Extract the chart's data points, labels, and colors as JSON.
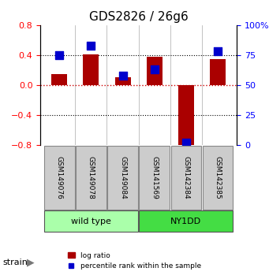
{
  "title": "GDS2826 / 26g6",
  "samples": [
    "GSM149076",
    "GSM149078",
    "GSM149084",
    "GSM141569",
    "GSM142384",
    "GSM142385"
  ],
  "log_ratio": [
    0.15,
    0.41,
    0.1,
    0.38,
    -0.82,
    0.35
  ],
  "percentile_rank": [
    75,
    83,
    58,
    63,
    2,
    78
  ],
  "groups": [
    {
      "label": "wild type",
      "indices": [
        0,
        1,
        2
      ],
      "color": "#aaffaa"
    },
    {
      "label": "NY1DD",
      "indices": [
        3,
        4,
        5
      ],
      "color": "#44dd44"
    }
  ],
  "ylim_left": [
    -0.8,
    0.8
  ],
  "ylim_right": [
    0,
    100
  ],
  "yticks_left": [
    -0.8,
    -0.4,
    0.0,
    0.4,
    0.8
  ],
  "yticks_right": [
    0,
    25,
    50,
    75,
    100
  ],
  "ytick_labels_right": [
    "0",
    "25",
    "50",
    "75",
    "100%"
  ],
  "bar_color": "#aa0000",
  "dot_color": "#0000cc",
  "ref_line_color": "#cc0000",
  "dotted_line_color": "#000000",
  "bar_width": 0.5,
  "dot_size": 60,
  "legend_labels": [
    "log ratio",
    "percentile rank within the sample"
  ],
  "strain_label": "strain",
  "group_box_color": "#cccccc",
  "title_fontsize": 11,
  "tick_fontsize": 8,
  "label_fontsize": 8
}
